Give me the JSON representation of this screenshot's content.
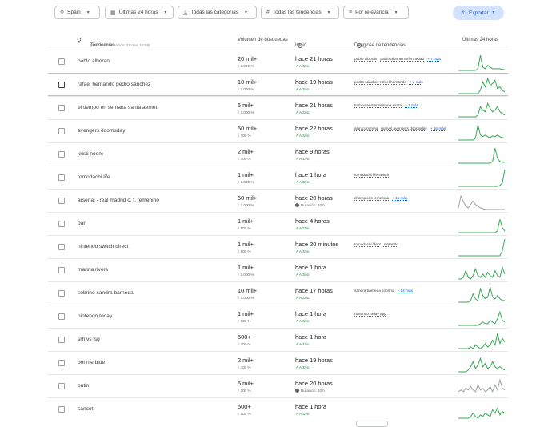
{
  "filters": {
    "region": "Spain",
    "time": "Últimas 24 horas",
    "category": "Todas las categorías",
    "trends": "Todas las tendencias",
    "sort": "Por relevancia",
    "export": "Exportar"
  },
  "header": {
    "trends": "Tendencias",
    "updated": "(Última actualización: 27 mar, 16:58)",
    "volume": "Volumen de búsquedas",
    "start": "Inicio",
    "breakdown": "Desglose de tendencias",
    "last24": "Últimas 24 horas"
  },
  "rows": [
    {
      "term": "pablo alboran",
      "vol": "20 mil+",
      "pct": "↑ 1.000 %",
      "start": "hace 21 horas",
      "status": "Activo",
      "tags": [
        "pablo alborán",
        "pablo alboran enfermedad"
      ],
      "more": "+ 7 más",
      "spark": [
        0,
        0,
        0,
        0,
        0,
        0,
        0,
        0,
        0.1,
        0.9,
        0.2,
        0.1,
        0.3,
        0.2,
        0.1,
        0.1,
        0.1,
        0.1,
        0.05,
        0.05
      ],
      "color": "#34a853"
    },
    {
      "term": "rafael hernando pedro sánchez",
      "vol": "10 mil+",
      "pct": "↑ 1.000 %",
      "start": "hace 19 horas",
      "status": "Activo",
      "tags": [
        "pedro sánchez rafael hernando"
      ],
      "more": "+ 2 más",
      "spark": [
        0,
        0,
        0,
        0,
        0,
        0,
        0,
        0,
        0,
        0.2,
        0.7,
        0.4,
        0.9,
        0.5,
        0.6,
        0.8,
        0.3,
        0.4,
        0.2,
        0.1
      ],
      "color": "#34a853",
      "hl": true
    },
    {
      "term": "el tiempo en semana santa aemet",
      "vol": "5 mil+",
      "pct": "↑ 1.000 %",
      "start": "hace 21 horas",
      "status": "Activo",
      "tags": [
        "tiempo aemet semana santa"
      ],
      "more": "+ 1 más",
      "spark": [
        0,
        0,
        0,
        0,
        0,
        0,
        0,
        0,
        0.1,
        0.6,
        0.4,
        0.3,
        0.8,
        0.5,
        0.3,
        0.4,
        0.6,
        0.3,
        0.2,
        0.1
      ],
      "color": "#34a853"
    },
    {
      "term": "avengers doomsday",
      "vol": "50 mil+",
      "pct": "↑ 700 %",
      "start": "hace 22 horas",
      "status": "Activo",
      "tags": [
        "alan cumming",
        "marvel avengers doomsday"
      ],
      "more": "+ 16 más",
      "spark": [
        0,
        0,
        0,
        0,
        0,
        0,
        0,
        0.1,
        0.9,
        0.3,
        0.2,
        0.3,
        0.2,
        0.15,
        0.25,
        0.2,
        0.3,
        0.2,
        0.15,
        0.1
      ],
      "color": "#34a853"
    },
    {
      "term": "kristi noem",
      "vol": "2 mil+",
      "pct": "↑ 400 %",
      "start": "hace 9 horas",
      "status": "Activo",
      "tags": [],
      "more": "",
      "spark": [
        0,
        0,
        0,
        0,
        0,
        0,
        0,
        0,
        0,
        0,
        0,
        0,
        0,
        0,
        0.1,
        0.9,
        0.3,
        0.1,
        0.05,
        0.05
      ],
      "color": "#34a853"
    },
    {
      "term": "tomodachi life",
      "vol": "1 mil+",
      "pct": "↑ 1.000 %",
      "start": "hace 1 hora",
      "status": "Activo",
      "tags": [
        "tomodachi life switch"
      ],
      "more": "",
      "spark": [
        0,
        0,
        0,
        0,
        0,
        0,
        0,
        0,
        0,
        0,
        0,
        0,
        0,
        0,
        0,
        0,
        0,
        0.05,
        0.2,
        1
      ],
      "color": "#34a853"
    },
    {
      "term": "arsenal - real madrid c. f. femenino",
      "vol": "50 mil+",
      "pct": "↑ 1.000 %",
      "start": "hace 20 horas",
      "status": "Duración: 20 h",
      "dur": true,
      "tags": [
        "champions femenina"
      ],
      "more": "+ 11 más",
      "spark": [
        0.1,
        0.8,
        0.5,
        0.2,
        0.1,
        0.3,
        0.5,
        0.3,
        0.2,
        0.1,
        0.05,
        0,
        0,
        0,
        0,
        0,
        0,
        0,
        0,
        0
      ],
      "color": "#9aa0a6"
    },
    {
      "term": "bari",
      "vol": "1 mil+",
      "pct": "↑ 500 %",
      "start": "hace 4 horas",
      "status": "Activo",
      "tags": [],
      "more": "",
      "spark": [
        0,
        0,
        0,
        0,
        0,
        0,
        0,
        0,
        0,
        0,
        0,
        0,
        0,
        0,
        0,
        0,
        0.1,
        0.8,
        0.3,
        0.1
      ],
      "color": "#34a853"
    },
    {
      "term": "nintendo switch direct",
      "vol": "1 mil+",
      "pct": "↑ 800 %",
      "start": "hace 20 minutos",
      "status": "Activo",
      "tags": [
        "tomodachi life 2",
        "nintendo"
      ],
      "more": "",
      "spark": [
        0,
        0,
        0,
        0,
        0,
        0,
        0,
        0,
        0,
        0,
        0,
        0,
        0,
        0,
        0,
        0,
        0,
        0,
        0.3,
        1
      ],
      "color": "#34a853"
    },
    {
      "term": "marina rivers",
      "vol": "1 mil+",
      "pct": "↑ 1.000 %",
      "start": "hace 1 hora",
      "status": "Activo",
      "tags": [],
      "more": "",
      "spark": [
        0,
        0,
        0.1,
        0.5,
        0.1,
        0,
        0.2,
        0.6,
        0.2,
        0.1,
        0.3,
        0.1,
        0.4,
        0.2,
        0.1,
        0.5,
        0.2,
        0.1,
        0.7,
        0.3
      ],
      "color": "#34a853"
    },
    {
      "term": "sobrino sandra barneda",
      "vol": "10 mil+",
      "pct": "↑ 1.000 %",
      "start": "hace 17 horas",
      "status": "Activo",
      "tags": [
        "sandra barneda sobrino"
      ],
      "more": "+ 14 más",
      "spark": [
        0,
        0,
        0,
        0,
        0,
        0.1,
        0.5,
        0.2,
        0.1,
        0.8,
        0.4,
        0.2,
        0.3,
        0.9,
        0.3,
        0.2,
        0.4,
        0.2,
        0.1,
        0.1
      ],
      "color": "#34a853"
    },
    {
      "term": "nintendo today",
      "vol": "1 mil+",
      "pct": "↑ 900 %",
      "start": "hace 1 hora",
      "status": "Activo",
      "tags": [
        "nintendo today app"
      ],
      "more": "",
      "spark": [
        0,
        0,
        0,
        0,
        0,
        0,
        0,
        0,
        0,
        0.1,
        0.2,
        0.1,
        0.1,
        0.3,
        0.2,
        0.1,
        0.4,
        0.8,
        0.3,
        0.2
      ],
      "color": "#34a853"
    },
    {
      "term": "srh vs lsg",
      "vol": "500+",
      "pct": "↑ 300 %",
      "start": "hace 1 hora",
      "status": "Activo",
      "tags": [],
      "more": "",
      "spark": [
        0,
        0,
        0,
        0,
        0,
        0.1,
        0,
        0.2,
        0.1,
        0,
        0.1,
        0.3,
        0.1,
        0.2,
        0.5,
        0.2,
        0.9,
        0.3,
        0.6,
        0.4
      ],
      "color": "#34a853"
    },
    {
      "term": "bonnie blue",
      "vol": "2 mil+",
      "pct": "↑ 400 %",
      "start": "hace 19 horas",
      "status": "Activo",
      "tags": [],
      "more": "",
      "spark": [
        0,
        0,
        0,
        0,
        0.1,
        0.3,
        0.6,
        0.2,
        0.4,
        0.8,
        0.3,
        0.5,
        0.2,
        0.3,
        0.6,
        0.3,
        0.2,
        0.3,
        0.2,
        0.1
      ],
      "color": "#34a853"
    },
    {
      "term": "putin",
      "vol": "5 mil+",
      "pct": "↑ 200 %",
      "start": "hace 20 horas",
      "status": "Duración: 20 h",
      "dur": true,
      "tags": [],
      "more": "",
      "spark": [
        0.2,
        0.3,
        0.2,
        0.4,
        0.3,
        0.5,
        0.3,
        0.2,
        0.6,
        0.3,
        0.4,
        0.2,
        0.3,
        0.5,
        0.2,
        0.6,
        0.3,
        0.9,
        0.4,
        0.3
      ],
      "color": "#9aa0a6"
    },
    {
      "term": "sancet",
      "vol": "500+",
      "pct": "↑ 100 %",
      "start": "hace 1 hora",
      "status": "Activo",
      "tags": [],
      "more": "",
      "spark": [
        0,
        0,
        0,
        0,
        0,
        0.1,
        0.3,
        0.1,
        0,
        0.2,
        0.1,
        0.3,
        0.2,
        0.1,
        0.5,
        0.3,
        0.6,
        0.2,
        0.4,
        0.3
      ],
      "color": "#34a853"
    }
  ]
}
